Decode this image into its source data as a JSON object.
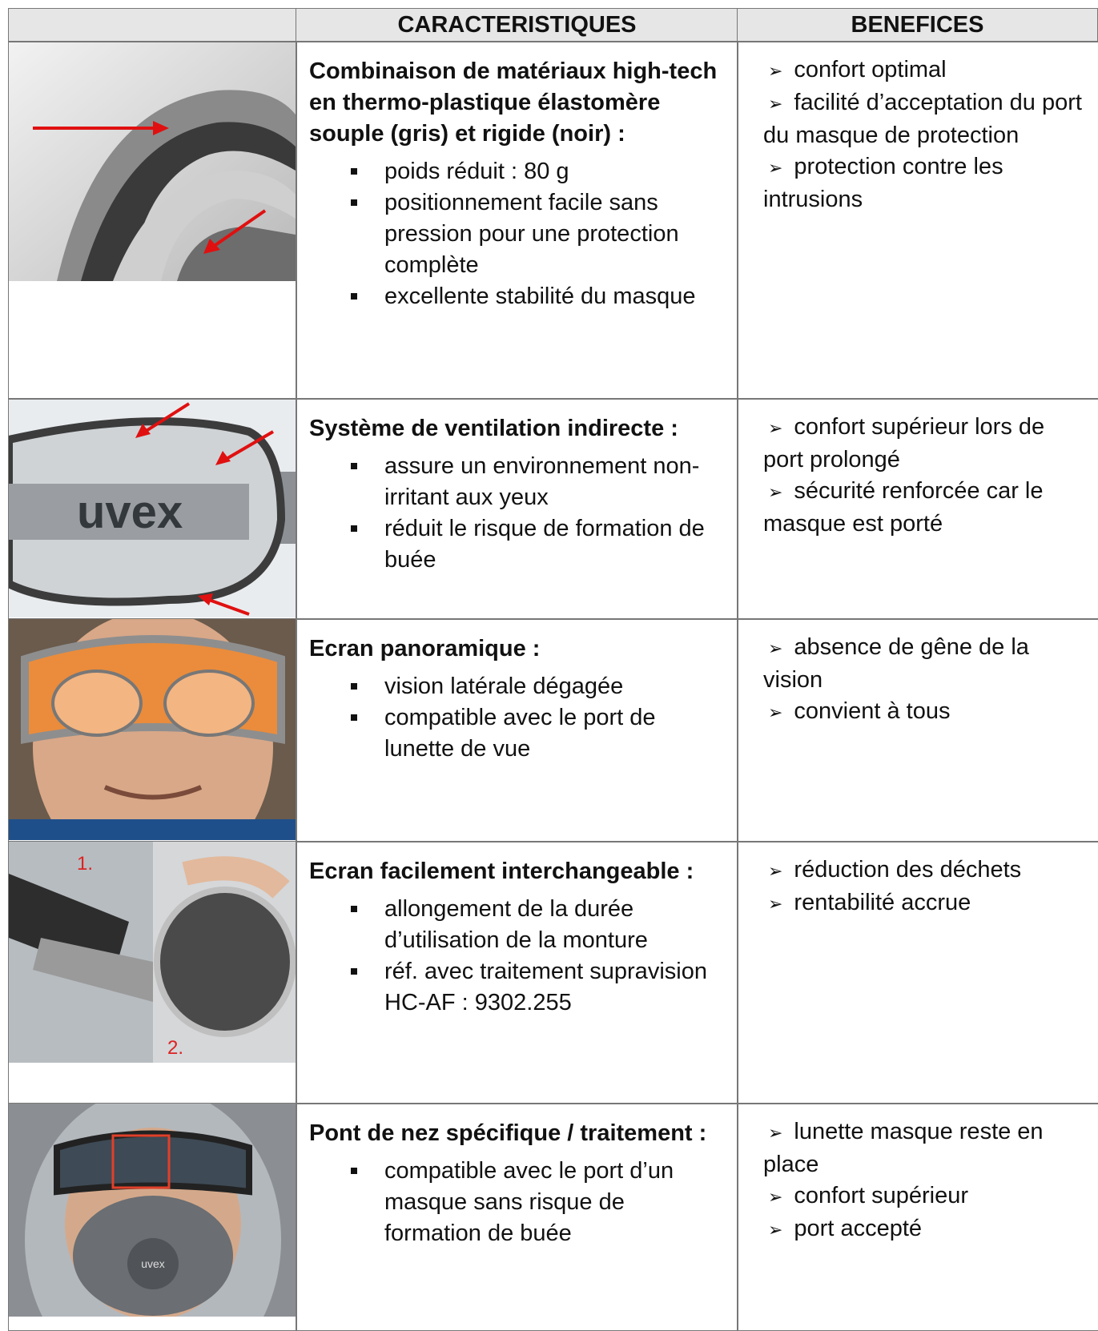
{
  "table": {
    "headers": [
      "CARACTERISTIQUES",
      "BENEFICES"
    ],
    "rows": [
      {
        "title": "Combinaison de matériaux high-tech en thermo-plastique élastomère souple (gris) et rigide (noir) :",
        "features": [
          "poids réduit : 80 g",
          "positionnement facile sans pression pour une protection complète",
          "excellente stabilité du masque"
        ],
        "benefits": [
          "confort optimal",
          "facilité d’acceptation du port du masque de protection",
          "protection contre les intrusions"
        ]
      },
      {
        "title": "Système de ventilation indirecte :",
        "image_label": "uvex",
        "features": [
          "assure un environnement non-irritant aux yeux",
          "réduit le risque de formation de buée"
        ],
        "benefits": [
          "confort supérieur lors de port prolongé",
          "sécurité renforcée car le masque est porté"
        ]
      },
      {
        "title": "Ecran panoramique :",
        "features": [
          "vision latérale dégagée",
          "compatible avec le port de lunette de vue"
        ],
        "benefits": [
          "absence de gêne de la vision",
          "convient à tous"
        ]
      },
      {
        "title": "Ecran facilement interchangeable :",
        "image_labels": [
          "1.",
          "2."
        ],
        "features": [
          "allongement de la durée d’utilisation de la monture",
          "réf. avec traitement supravision HC-AF : 9302.255"
        ],
        "benefits": [
          "réduction des déchets",
          "rentabilité accrue"
        ]
      },
      {
        "title": "Pont de nez spécifique / traitement :",
        "image_label": "uvex",
        "features": [
          "compatible avec le port d’un masque sans risque de formation de buée"
        ],
        "benefits": [
          "lunette masque reste en place",
          "confort supérieur",
          "port accepté"
        ]
      }
    ]
  }
}
